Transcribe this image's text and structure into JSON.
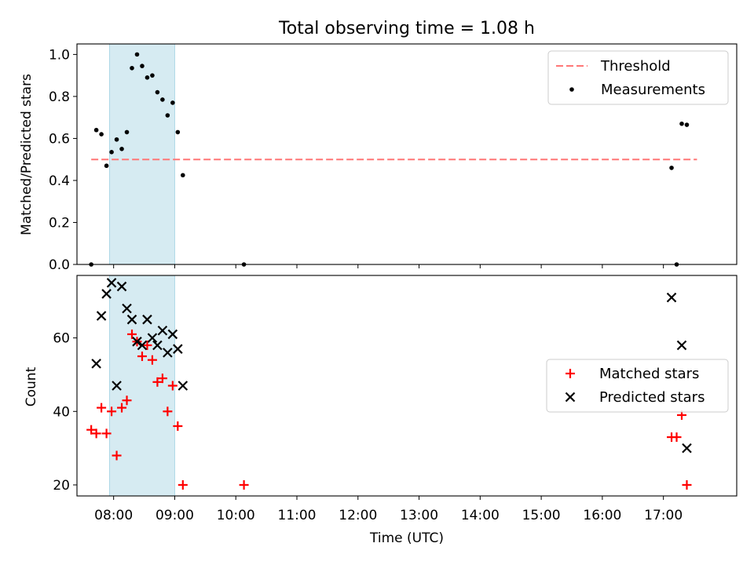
{
  "figure_title": "Total observing time = 1.08 h",
  "colors": {
    "threshold": "#ff7777",
    "measurement": "#000000",
    "matched": "#ff0000",
    "predicted": "#000000",
    "span": "#add8e6"
  },
  "chart_data": [
    {
      "type": "scatter",
      "panel": "top",
      "title": "Total observing time = 1.08 h",
      "xlabel": "",
      "ylabel": "Matched/Predicted stars",
      "xlim": [
        "07:24",
        "18:12"
      ],
      "ylim": [
        0,
        1.05
      ],
      "yticks": [
        "0.0",
        "0.2",
        "0.4",
        "0.6",
        "0.8",
        "1.0"
      ],
      "highlight_span": [
        "07:56",
        "09:00"
      ],
      "legend_position": "upper-right",
      "series": [
        {
          "name": "Threshold",
          "style": "dashed-line",
          "x": [
            "07:38",
            "17:33"
          ],
          "y": [
            0.5,
            0.5
          ]
        },
        {
          "name": "Measurements",
          "style": "dot",
          "x": [
            "07:38",
            "07:43",
            "07:48",
            "07:53",
            "07:58",
            "08:03",
            "08:08",
            "08:13",
            "08:18",
            "08:23",
            "08:28",
            "08:33",
            "08:38",
            "08:43",
            "08:48",
            "08:53",
            "08:58",
            "09:03",
            "09:08",
            "10:08",
            "17:08",
            "17:13",
            "17:18",
            "17:23"
          ],
          "y": [
            0.0,
            0.64,
            0.62,
            0.47,
            0.535,
            0.595,
            0.55,
            0.63,
            0.935,
            1.0,
            0.945,
            0.89,
            0.9,
            0.82,
            0.785,
            0.71,
            0.77,
            0.63,
            0.425,
            0.0,
            0.46,
            0.0,
            0.67,
            0.665
          ]
        }
      ]
    },
    {
      "type": "scatter",
      "panel": "bottom",
      "title": "",
      "xlabel": "Time (UTC)",
      "ylabel": "Count",
      "xlim": [
        "07:24",
        "18:12"
      ],
      "ylim": [
        17,
        77
      ],
      "xticks": [
        "08:00",
        "09:00",
        "10:00",
        "11:00",
        "12:00",
        "13:00",
        "14:00",
        "15:00",
        "16:00",
        "17:00"
      ],
      "yticks": [
        "20",
        "40",
        "60"
      ],
      "highlight_span": [
        "07:56",
        "09:00"
      ],
      "legend_position": "center-right",
      "series": [
        {
          "name": "Matched stars",
          "marker": "plus",
          "x": [
            "07:38",
            "07:43",
            "07:48",
            "07:53",
            "07:58",
            "08:03",
            "08:08",
            "08:13",
            "08:18",
            "08:23",
            "08:28",
            "08:33",
            "08:38",
            "08:43",
            "08:48",
            "08:53",
            "08:58",
            "09:03",
            "09:08",
            "10:08",
            "17:08",
            "17:13",
            "17:18",
            "17:23"
          ],
          "y": [
            35,
            34,
            41,
            34,
            40,
            28,
            41,
            43,
            61,
            59,
            55,
            58,
            54,
            48,
            49,
            40,
            47,
            36,
            20,
            20,
            33,
            33,
            39,
            20
          ]
        },
        {
          "name": "Predicted stars",
          "marker": "x",
          "x": [
            "07:43",
            "07:48",
            "07:53",
            "07:58",
            "08:03",
            "08:08",
            "08:13",
            "08:18",
            "08:23",
            "08:28",
            "08:33",
            "08:38",
            "08:43",
            "08:48",
            "08:53",
            "08:58",
            "09:03",
            "09:08",
            "17:08",
            "17:18",
            "17:23"
          ],
          "y": [
            53,
            66,
            72,
            75,
            47,
            74,
            68,
            65,
            59,
            58,
            65,
            60,
            58,
            62,
            56,
            61,
            57,
            47,
            71,
            58,
            30
          ]
        }
      ]
    }
  ]
}
